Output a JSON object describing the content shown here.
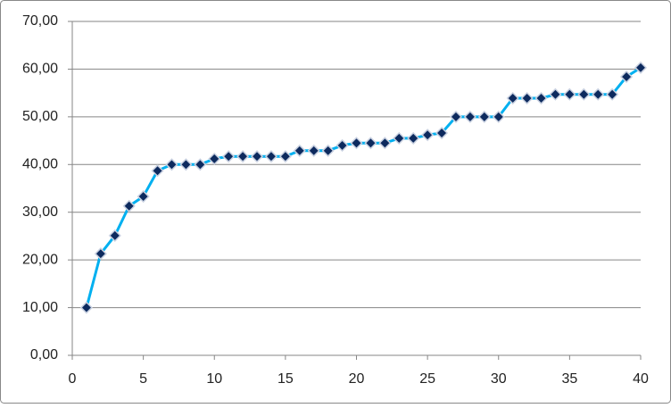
{
  "chart_data": {
    "type": "line",
    "x": [
      1,
      2,
      3,
      4,
      5,
      6,
      7,
      8,
      9,
      10,
      11,
      12,
      13,
      14,
      15,
      16,
      17,
      18,
      19,
      20,
      21,
      22,
      23,
      24,
      25,
      26,
      27,
      28,
      29,
      30,
      31,
      32,
      33,
      34,
      35,
      36,
      37,
      38,
      39,
      40
    ],
    "values": [
      10,
      21.3,
      25.1,
      31.3,
      33.3,
      38.7,
      40,
      40,
      40,
      41.2,
      41.7,
      41.7,
      41.7,
      41.7,
      41.7,
      42.9,
      42.9,
      42.9,
      44,
      44.5,
      44.5,
      44.5,
      45.5,
      45.5,
      46.2,
      46.6,
      50,
      50,
      50,
      50,
      53.9,
      53.9,
      53.9,
      54.7,
      54.7,
      54.7,
      54.7,
      54.7,
      58.4,
      60.3
    ],
    "color": "#00b0f0",
    "marker_color": "#0d2a5e",
    "xlim": [
      0,
      40
    ],
    "xticks": [
      0,
      5,
      10,
      15,
      20,
      25,
      30,
      35,
      40
    ],
    "ylim": [
      0,
      70
    ],
    "yticks": [
      {
        "value": 0,
        "label": "0,00"
      },
      {
        "value": 10,
        "label": "10,00"
      },
      {
        "value": 20,
        "label": "20,00"
      },
      {
        "value": 30,
        "label": "30,00"
      },
      {
        "value": 40,
        "label": "40,00"
      },
      {
        "value": 50,
        "label": "50,00"
      },
      {
        "value": 60,
        "label": "60,00"
      },
      {
        "value": 70,
        "label": "70,00"
      }
    ],
    "grid": true
  }
}
